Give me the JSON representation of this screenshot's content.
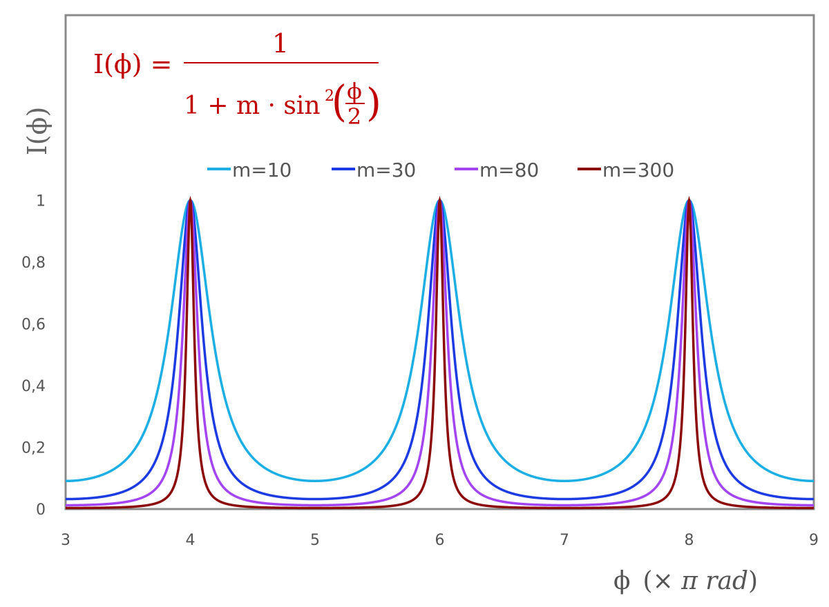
{
  "chart_data": {
    "type": "line",
    "formula": {
      "lhs": "I(ϕ) =",
      "numerator": "1",
      "denominator_prefix": "1 + m · sin",
      "exponent": "2",
      "frac_num": "ϕ",
      "frac_den": "2",
      "color": "#C00000"
    },
    "function": "I(x) = 1 / (1 + m * sin^2(pi * x / 2)), x in units of pi rad",
    "xlabel": {
      "symbol": "ϕ",
      "unit_open": "(× ",
      "unit_italic": "π rad",
      "unit_close": ")"
    },
    "ylabel": "I(ϕ)",
    "xlim": [
      3,
      9
    ],
    "ylim": [
      0,
      1.6
    ],
    "xticks": [
      "3",
      "4",
      "5",
      "6",
      "7",
      "8",
      "9"
    ],
    "yticks": [
      {
        "value": 0,
        "label": "0"
      },
      {
        "value": 0.2,
        "label": "0,2"
      },
      {
        "value": 0.4,
        "label": "0,4"
      },
      {
        "value": 0.6,
        "label": "0,6"
      },
      {
        "value": 0.8,
        "label": "0,8"
      },
      {
        "value": 1,
        "label": "1"
      }
    ],
    "grid": false,
    "legend_position": "top-center",
    "series": [
      {
        "name": "m=10",
        "m": 10,
        "color": "#1DAFE3",
        "min_value": 0.091,
        "peak_value": 1,
        "peaks_at": [
          4,
          6,
          8
        ]
      },
      {
        "name": "m=30",
        "m": 30,
        "color": "#1C3CE2",
        "min_value": 0.032,
        "peak_value": 1,
        "peaks_at": [
          4,
          6,
          8
        ]
      },
      {
        "name": "m=80",
        "m": 80,
        "color": "#A445F2",
        "min_value": 0.012,
        "peak_value": 1,
        "peaks_at": [
          4,
          6,
          8
        ]
      },
      {
        "name": "m=300",
        "m": 300,
        "color": "#8B0A0A",
        "min_value": 0.0033,
        "peak_value": 1,
        "peaks_at": [
          4,
          6,
          8
        ]
      }
    ]
  }
}
